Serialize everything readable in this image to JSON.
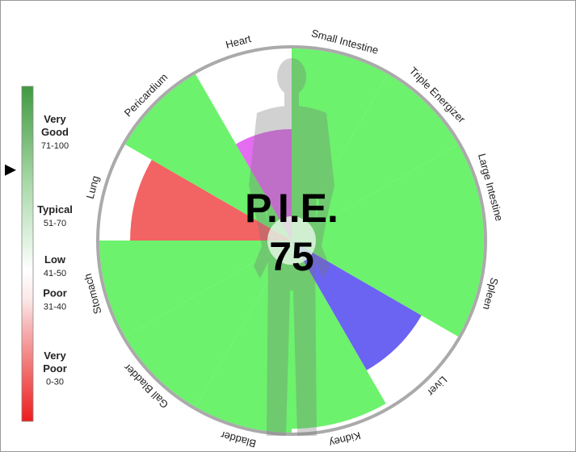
{
  "chart_data": {
    "type": "polar_bar",
    "title": "P.I.E.",
    "center_value": 75,
    "categories": [
      "Small Intestine",
      "Triple Energizer",
      "Large Intestine",
      "Spleen",
      "Liver",
      "Kidney",
      "Bladder",
      "Gall Bladder",
      "Stomach",
      "Lung",
      "Pericardium",
      "Heart"
    ],
    "values": [
      100,
      100,
      100,
      100,
      78,
      98,
      100,
      100,
      100,
      84,
      100,
      58
    ],
    "colors": [
      "#6cf26c",
      "#6cf26c",
      "#6cf26c",
      "#6cf26c",
      "#6b63f2",
      "#6cf26c",
      "#6cf26c",
      "#6cf26c",
      "#6cf26c",
      "#f26363",
      "#6cf26c",
      "#e46cf0"
    ],
    "rlim": [
      0,
      100
    ],
    "legend": [
      {
        "label": "Very Good",
        "range": "71-100"
      },
      {
        "label": "Typical",
        "range": "51-70"
      },
      {
        "label": "Low",
        "range": "41-50"
      },
      {
        "label": "Poor",
        "range": "31-40"
      },
      {
        "label": "Very Poor",
        "range": "0-30"
      }
    ]
  }
}
